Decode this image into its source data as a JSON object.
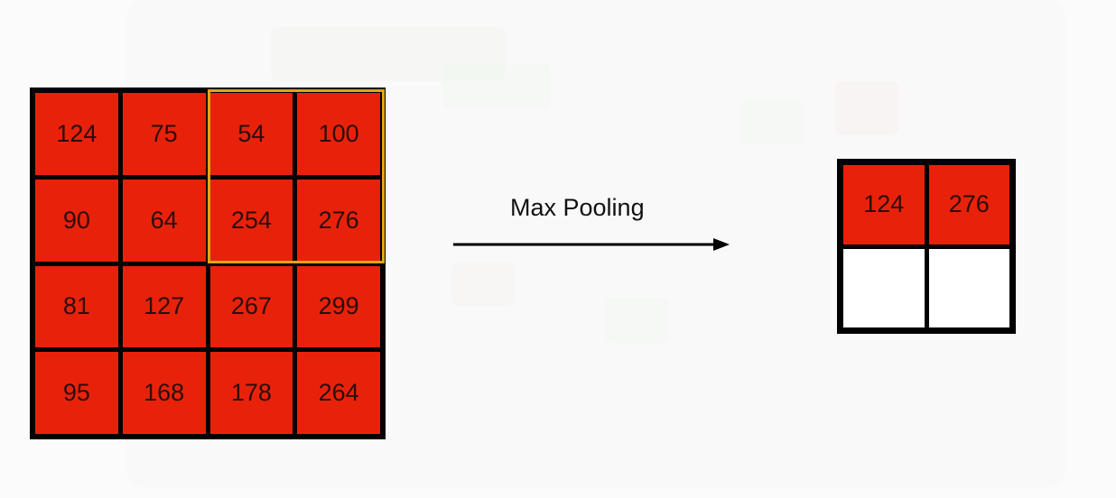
{
  "input_matrix": {
    "rows": [
      [
        "124",
        "75",
        "54",
        "100"
      ],
      [
        "90",
        "64",
        "254",
        "276"
      ],
      [
        "81",
        "127",
        "267",
        "299"
      ],
      [
        "95",
        "168",
        "178",
        "264"
      ]
    ],
    "cell_color": "#e8220a",
    "highlight_color": "#e2a414"
  },
  "operation": {
    "label": "Max Pooling"
  },
  "output_matrix": {
    "rows": [
      [
        "124",
        "276"
      ],
      [
        "",
        ""
      ]
    ],
    "filled_color": "#e8220a",
    "empty_color": "#ffffff"
  }
}
